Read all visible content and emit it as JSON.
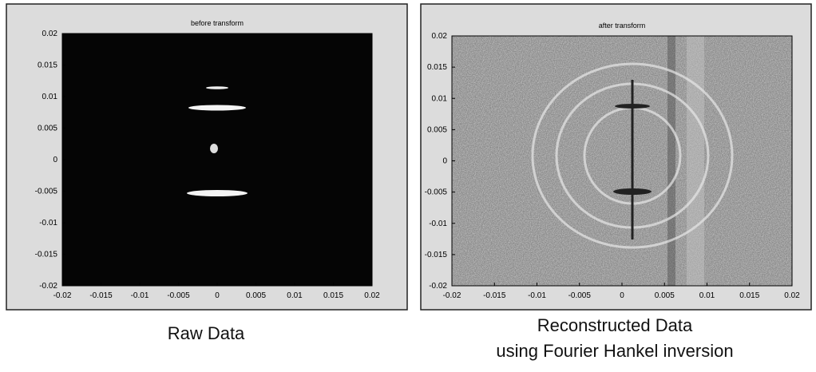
{
  "chart_data": [
    {
      "type": "image",
      "title": "before transform",
      "caption": [
        "Raw Data"
      ],
      "xlim": [
        -0.02,
        0.02
      ],
      "ylim": [
        -0.02,
        0.02
      ],
      "xticks": [
        -0.02,
        -0.015,
        -0.01,
        -0.005,
        0,
        0.005,
        0.01,
        0.015,
        0.02
      ],
      "yticks": [
        -0.02,
        -0.015,
        -0.01,
        -0.005,
        0,
        0.005,
        0.01,
        0.015,
        0.02
      ]
    },
    {
      "type": "image",
      "title": "after transform",
      "caption": [
        "Reconstructed Data",
        "using Fourier Hankel inversion"
      ],
      "xlim": [
        -0.02,
        0.02
      ],
      "ylim": [
        -0.02,
        0.02
      ],
      "xticks": [
        -0.02,
        -0.015,
        -0.01,
        -0.005,
        0,
        0.005,
        0.01,
        0.015,
        0.02
      ],
      "yticks": [
        -0.02,
        -0.015,
        -0.01,
        -0.005,
        0,
        0.005,
        0.01,
        0.015,
        0.02
      ]
    }
  ]
}
